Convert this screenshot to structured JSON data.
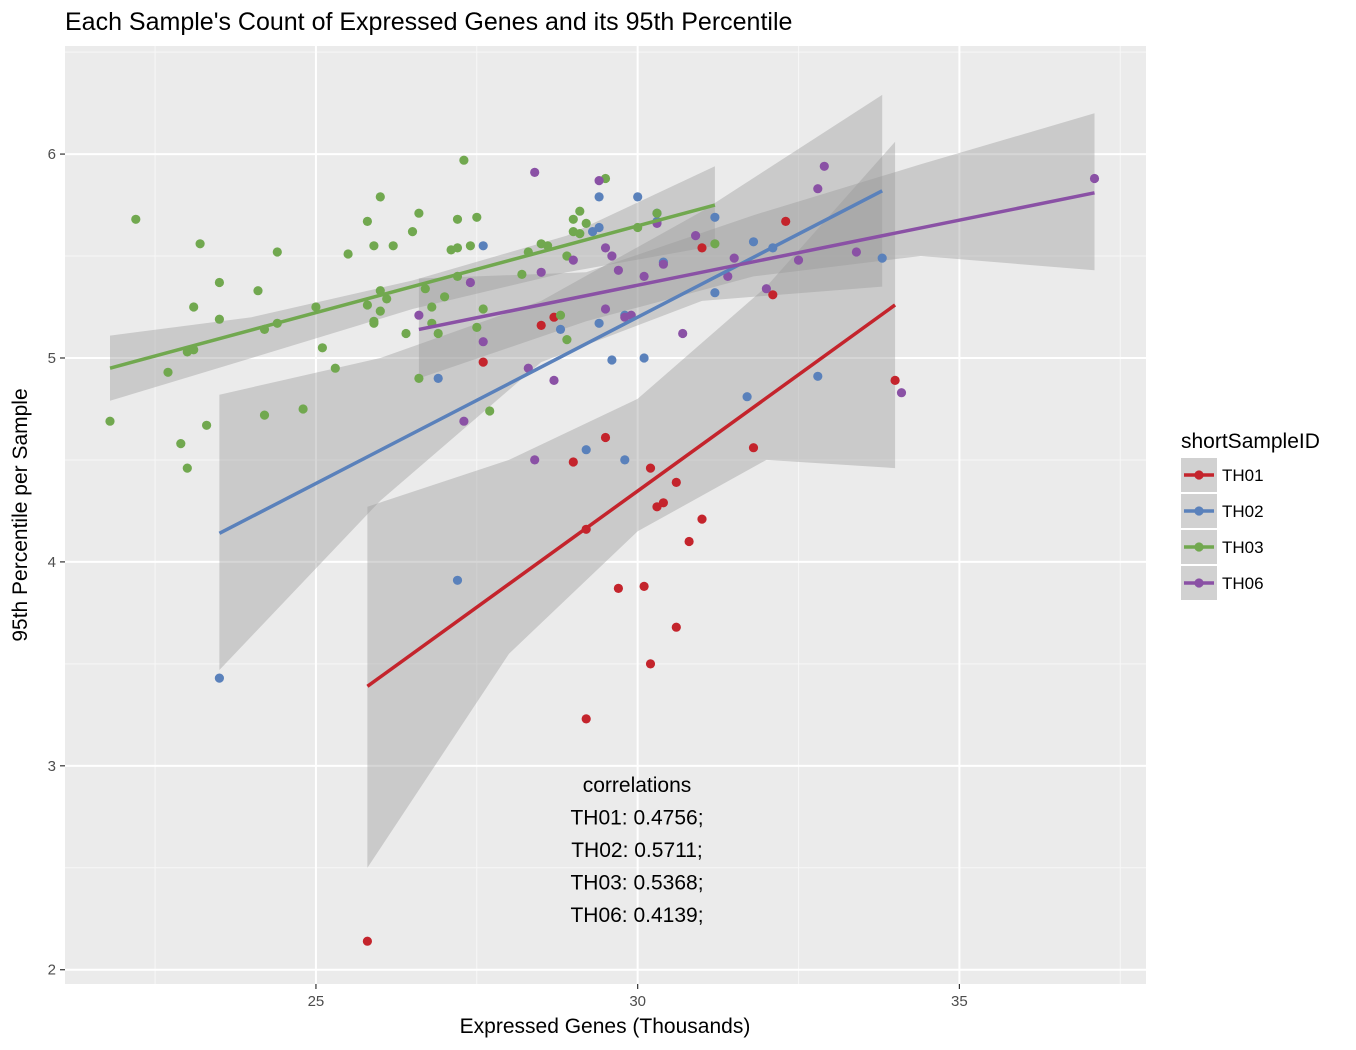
{
  "chart_data": {
    "type": "scatter",
    "title": "Each Sample's Count of Expressed Genes and its 95th Percentile",
    "xlabel": "Expressed Genes (Thousands)",
    "ylabel": "95th Percentile per Sample",
    "xlim": [
      21.1,
      37.9
    ],
    "ylim": [
      1.93,
      6.53
    ],
    "x_ticks": [
      25,
      30,
      35
    ],
    "y_ticks": [
      2,
      3,
      4,
      5,
      6
    ],
    "x_tick_labels": [
      "25",
      "30",
      "35"
    ],
    "y_tick_labels": [
      "2",
      "3",
      "4",
      "5",
      "6"
    ],
    "grid": true,
    "legend": {
      "title": "shortSampleID",
      "position": "right"
    },
    "annotation": {
      "title": "correlations",
      "lines": [
        "TH01: 0.4756;",
        "TH02: 0.5711;",
        "TH03: 0.5368;",
        "TH06: 0.4139;"
      ]
    },
    "series": [
      {
        "name": "TH01",
        "color": "#c4242c",
        "fit": {
          "x": [
            25.8,
            34.0
          ],
          "y": [
            3.39,
            5.26
          ]
        },
        "band": {
          "x": [
            25.8,
            28.0,
            30.0,
            32.0,
            34.0
          ],
          "lower": [
            2.5,
            3.55,
            4.15,
            4.5,
            4.46
          ],
          "upper": [
            4.27,
            4.5,
            4.8,
            5.35,
            6.06
          ]
        },
        "points": [
          [
            25.8,
            2.14
          ],
          [
            27.6,
            4.98
          ],
          [
            28.5,
            5.16
          ],
          [
            28.7,
            5.2
          ],
          [
            29.0,
            4.49
          ],
          [
            29.2,
            4.16
          ],
          [
            29.2,
            3.23
          ],
          [
            29.5,
            4.61
          ],
          [
            29.7,
            3.87
          ],
          [
            30.1,
            3.88
          ],
          [
            30.2,
            3.5
          ],
          [
            30.2,
            4.46
          ],
          [
            30.3,
            4.27
          ],
          [
            30.4,
            4.29
          ],
          [
            30.6,
            4.39
          ],
          [
            30.6,
            3.68
          ],
          [
            30.8,
            4.1
          ],
          [
            31.0,
            4.21
          ],
          [
            31.0,
            5.54
          ],
          [
            31.8,
            4.56
          ],
          [
            32.1,
            5.31
          ],
          [
            32.3,
            5.67
          ],
          [
            34.0,
            4.89
          ]
        ]
      },
      {
        "name": "TH02",
        "color": "#5a81bb",
        "fit": {
          "x": [
            23.5,
            33.8
          ],
          "y": [
            4.14,
            5.82
          ]
        },
        "band": {
          "x": [
            23.5,
            26.0,
            28.5,
            31.0,
            33.8
          ],
          "lower": [
            3.47,
            4.3,
            4.98,
            5.28,
            5.35
          ],
          "upper": [
            4.82,
            5.0,
            5.28,
            5.72,
            6.29
          ]
        },
        "points": [
          [
            23.5,
            3.43
          ],
          [
            26.9,
            4.9
          ],
          [
            27.2,
            3.91
          ],
          [
            27.6,
            5.55
          ],
          [
            28.8,
            5.14
          ],
          [
            29.2,
            4.55
          ],
          [
            29.3,
            5.62
          ],
          [
            29.4,
            5.79
          ],
          [
            29.4,
            5.17
          ],
          [
            29.4,
            5.64
          ],
          [
            29.6,
            4.99
          ],
          [
            29.8,
            4.5
          ],
          [
            29.8,
            5.21
          ],
          [
            30.0,
            5.79
          ],
          [
            30.1,
            5.0
          ],
          [
            30.3,
            5.71
          ],
          [
            30.3,
            5.67
          ],
          [
            30.4,
            5.47
          ],
          [
            31.2,
            5.69
          ],
          [
            31.2,
            5.32
          ],
          [
            31.7,
            4.81
          ],
          [
            31.8,
            5.57
          ],
          [
            32.1,
            5.54
          ],
          [
            32.8,
            4.91
          ],
          [
            33.8,
            5.49
          ]
        ]
      },
      {
        "name": "TH03",
        "color": "#71a84f",
        "fit": {
          "x": [
            21.8,
            31.2
          ],
          "y": [
            4.95,
            5.75
          ]
        },
        "band": {
          "x": [
            21.8,
            24.0,
            26.5,
            28.9,
            31.2
          ],
          "lower": [
            4.79,
            5.0,
            5.24,
            5.42,
            5.55
          ],
          "upper": [
            5.11,
            5.2,
            5.38,
            5.6,
            5.94
          ]
        },
        "points": [
          [
            21.8,
            4.69
          ],
          [
            22.2,
            5.68
          ],
          [
            22.7,
            4.93
          ],
          [
            22.9,
            4.58
          ],
          [
            23.0,
            4.46
          ],
          [
            23.0,
            5.03
          ],
          [
            23.1,
            5.25
          ],
          [
            23.1,
            5.04
          ],
          [
            23.2,
            5.56
          ],
          [
            23.3,
            4.67
          ],
          [
            23.5,
            5.19
          ],
          [
            23.5,
            5.37
          ],
          [
            24.1,
            5.33
          ],
          [
            24.2,
            4.72
          ],
          [
            24.2,
            5.14
          ],
          [
            24.4,
            5.52
          ],
          [
            24.4,
            5.17
          ],
          [
            24.8,
            4.75
          ],
          [
            25.0,
            5.25
          ],
          [
            25.1,
            5.05
          ],
          [
            25.3,
            4.95
          ],
          [
            25.5,
            5.51
          ],
          [
            25.8,
            5.26
          ],
          [
            25.8,
            5.67
          ],
          [
            25.9,
            5.17
          ],
          [
            25.9,
            5.55
          ],
          [
            25.9,
            5.18
          ],
          [
            26.0,
            5.23
          ],
          [
            26.0,
            5.33
          ],
          [
            26.0,
            5.79
          ],
          [
            26.1,
            5.29
          ],
          [
            26.2,
            5.55
          ],
          [
            26.4,
            5.12
          ],
          [
            26.5,
            5.62
          ],
          [
            26.6,
            5.71
          ],
          [
            26.6,
            4.9
          ],
          [
            26.7,
            5.34
          ],
          [
            26.8,
            5.25
          ],
          [
            26.8,
            5.17
          ],
          [
            26.9,
            5.12
          ],
          [
            27.0,
            5.3
          ],
          [
            27.1,
            5.53
          ],
          [
            27.2,
            5.4
          ],
          [
            27.2,
            5.68
          ],
          [
            27.2,
            5.54
          ],
          [
            27.3,
            5.97
          ],
          [
            27.4,
            5.55
          ],
          [
            27.5,
            5.69
          ],
          [
            27.5,
            5.15
          ],
          [
            27.6,
            5.24
          ],
          [
            27.7,
            4.74
          ],
          [
            28.2,
            5.41
          ],
          [
            28.3,
            5.52
          ],
          [
            28.5,
            5.56
          ],
          [
            28.6,
            5.55
          ],
          [
            28.8,
            5.21
          ],
          [
            28.9,
            5.09
          ],
          [
            28.9,
            5.5
          ],
          [
            29.0,
            5.68
          ],
          [
            29.0,
            5.62
          ],
          [
            29.1,
            5.72
          ],
          [
            29.1,
            5.61
          ],
          [
            29.2,
            5.66
          ],
          [
            29.5,
            5.88
          ],
          [
            30.0,
            5.64
          ],
          [
            30.3,
            5.71
          ],
          [
            31.2,
            5.56
          ]
        ]
      },
      {
        "name": "TH06",
        "color": "#8a51a5",
        "fit": {
          "x": [
            26.6,
            37.1
          ],
          "y": [
            5.14,
            5.81
          ]
        },
        "band": {
          "x": [
            26.6,
            29.2,
            31.8,
            34.4,
            37.1
          ],
          "lower": [
            4.9,
            5.18,
            5.4,
            5.5,
            5.43
          ],
          "upper": [
            5.39,
            5.42,
            5.7,
            5.95,
            6.2
          ]
        },
        "points": [
          [
            26.6,
            5.21
          ],
          [
            27.3,
            4.69
          ],
          [
            27.4,
            5.37
          ],
          [
            27.6,
            5.08
          ],
          [
            28.3,
            4.95
          ],
          [
            28.4,
            5.91
          ],
          [
            28.4,
            4.5
          ],
          [
            28.5,
            5.42
          ],
          [
            28.7,
            4.89
          ],
          [
            29.0,
            5.48
          ],
          [
            29.4,
            5.87
          ],
          [
            29.5,
            5.24
          ],
          [
            29.5,
            5.54
          ],
          [
            29.6,
            5.5
          ],
          [
            29.7,
            5.43
          ],
          [
            29.8,
            5.2
          ],
          [
            29.9,
            5.21
          ],
          [
            30.1,
            5.4
          ],
          [
            30.3,
            5.66
          ],
          [
            30.4,
            5.46
          ],
          [
            30.7,
            5.12
          ],
          [
            30.9,
            5.6
          ],
          [
            31.4,
            5.4
          ],
          [
            31.5,
            5.49
          ],
          [
            32.0,
            5.34
          ],
          [
            32.5,
            5.48
          ],
          [
            32.8,
            5.83
          ],
          [
            32.9,
            5.94
          ],
          [
            33.4,
            5.52
          ],
          [
            34.1,
            4.83
          ],
          [
            37.1,
            5.88
          ]
        ]
      }
    ]
  }
}
